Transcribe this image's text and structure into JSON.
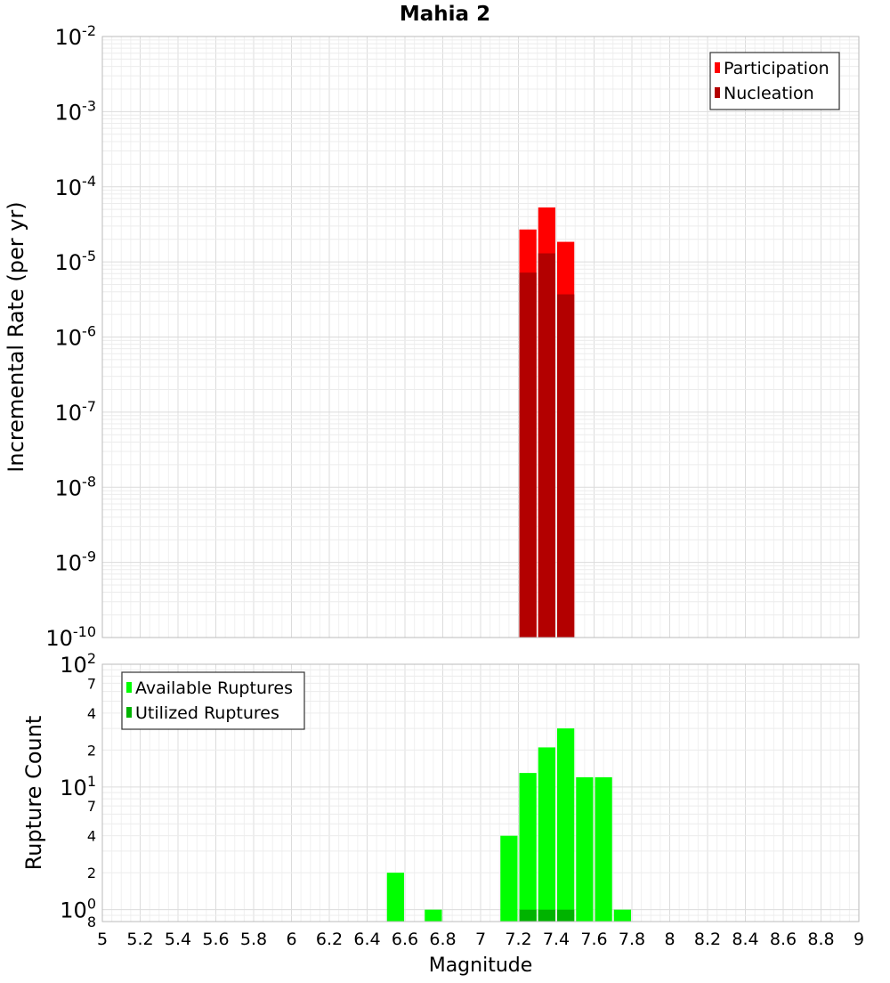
{
  "chart_data": [
    {
      "type": "bar",
      "title": "Mahia 2",
      "xlabel": "",
      "ylabel": "Incremental Rate (per yr)",
      "yscale": "log",
      "xlim": [
        5,
        9
      ],
      "ylim": [
        1e-10,
        0.01
      ],
      "y_ticks": [
        {
          "base": "10",
          "exp": "-10",
          "value": 1e-10
        },
        {
          "base": "10",
          "exp": "-9",
          "value": 1e-09
        },
        {
          "base": "10",
          "exp": "-8",
          "value": 1e-08
        },
        {
          "base": "10",
          "exp": "-7",
          "value": 1e-07
        },
        {
          "base": "10",
          "exp": "-6",
          "value": 1e-06
        },
        {
          "base": "10",
          "exp": "-5",
          "value": 1e-05
        },
        {
          "base": "10",
          "exp": "-4",
          "value": 0.0001
        },
        {
          "base": "10",
          "exp": "-3",
          "value": 0.001
        },
        {
          "base": "10",
          "exp": "-2",
          "value": 0.01
        }
      ],
      "bin_width": 0.1,
      "legend_position": "top-right",
      "series": [
        {
          "name": "Participation",
          "color": "#ff0000",
          "x": [
            7.25,
            7.35,
            7.45
          ],
          "values": [
            2.7e-05,
            5.3e-05,
            1.85e-05
          ]
        },
        {
          "name": "Nucleation",
          "color": "#b30000",
          "x": [
            7.25,
            7.35,
            7.45
          ],
          "values": [
            7.2e-06,
            1.3e-05,
            3.7e-06
          ]
        }
      ]
    },
    {
      "type": "bar",
      "xlabel": "Magnitude",
      "ylabel": "Rupture Count",
      "yscale": "log",
      "xlim": [
        5,
        9
      ],
      "ylim": [
        0.8,
        100
      ],
      "x_ticks": [
        "5",
        "5.2",
        "5.4",
        "5.6",
        "5.8",
        "6",
        "6.2",
        "6.4",
        "6.6",
        "6.8",
        "7",
        "7.2",
        "7.4",
        "7.6",
        "7.8",
        "8",
        "8.2",
        "8.4",
        "8.6",
        "8.8",
        "9"
      ],
      "y_major_ticks": [
        {
          "base": "10",
          "exp": "0",
          "value": 1
        },
        {
          "base": "10",
          "exp": "1",
          "value": 10
        },
        {
          "base": "10",
          "exp": "2",
          "value": 100
        }
      ],
      "y_minor_ticks": [
        {
          "label": "8",
          "value": 0.8
        },
        {
          "label": "2",
          "value": 2
        },
        {
          "label": "4",
          "value": 4
        },
        {
          "label": "7",
          "value": 7
        },
        {
          "label": "2",
          "value": 20
        },
        {
          "label": "4",
          "value": 40
        },
        {
          "label": "7",
          "value": 70
        }
      ],
      "bin_width": 0.1,
      "legend_position": "top-left",
      "series": [
        {
          "name": "Available Ruptures",
          "color": "#00ff00",
          "x": [
            6.55,
            6.75,
            7.15,
            7.25,
            7.35,
            7.45,
            7.55,
            7.65,
            7.75
          ],
          "values": [
            2,
            1,
            4,
            13,
            21,
            30,
            12,
            12,
            1
          ]
        },
        {
          "name": "Utilized Ruptures",
          "color": "#00b300",
          "x": [
            7.25,
            7.35,
            7.45
          ],
          "values": [
            1,
            1,
            1
          ]
        }
      ]
    }
  ]
}
